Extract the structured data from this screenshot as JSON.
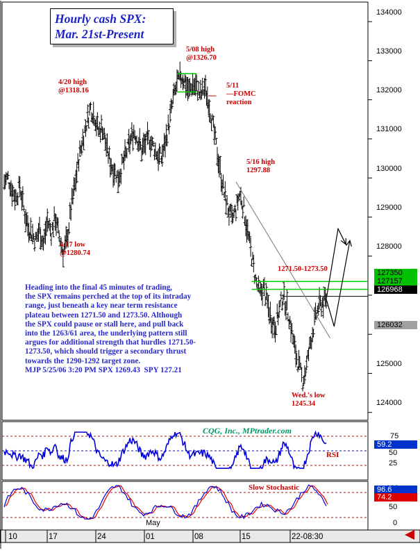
{
  "title": {
    "line1": "Hourly cash SPX:",
    "line2": "Mar. 21st-Present"
  },
  "annotations": [
    {
      "key": "apr20",
      "text": "4/20 high\n@1318.16"
    },
    {
      "key": "may08",
      "text": "5/08 high\n@1326.70"
    },
    {
      "key": "may11",
      "text": "5/11\n—FOMC\nreaction"
    },
    {
      "key": "may16",
      "text": "5/16 high\n1297.88"
    },
    {
      "key": "apr17",
      "text": "4/17 low\n@1280.74"
    },
    {
      "key": "zone",
      "text": "1271.50-1273.50"
    },
    {
      "key": "wedlow",
      "text": "Wed.'s low\n1245.34"
    }
  ],
  "commentary": "Heading into the final 45 minutes of trading,\nthe SPX remains perched at the top of its intraday\nrange, just beneath a key near term resistance\nplateau between 1271.50 and 1273.50. Although\nthe SPX could pause or stall here, and pull back\ninto the 1263/61 area, the underlying pattern still\nargues for additional strength that hurdles 1271.50-\n1273.50, which should trigger a secondary thrust\ntowards the 1290-1292 target zone.\nMJP 5/25/06 3:20 PM SPX 1269.43  SPY 127.21",
  "credit": "CQG, Inc., MPtrader.com",
  "price_axis_labels": [
    "134000",
    "133000",
    "132000",
    "131000",
    "130000",
    "129000",
    "128000",
    "125000",
    "124000"
  ],
  "price_tags": [
    {
      "text": "127350",
      "bg": "#00c000",
      "fg": "#000000"
    },
    {
      "text": "127157",
      "bg": "#00c000",
      "fg": "#000000"
    },
    {
      "text": "126968",
      "bg": "#000000",
      "fg": "#ffffff"
    },
    {
      "text": "126032",
      "bg": "#a0a0a0",
      "fg": "#000000"
    }
  ],
  "rsi": {
    "label": "RSI",
    "levels": [
      "75",
      "50",
      "25"
    ],
    "value": "59.2",
    "value_bg": "#0033cc",
    "value_fg": "#ffffff"
  },
  "stochastic": {
    "label": "Slow Stochastic",
    "levels": [
      "100",
      "50",
      "0"
    ],
    "values": [
      "96.6",
      "74.2"
    ],
    "value_bgs": [
      "#0033cc",
      "#dd0000"
    ]
  },
  "x_axis": {
    "month": "May",
    "labels": [
      "10",
      "17",
      "24",
      "01",
      "08",
      "15",
      "22-08:30"
    ]
  },
  "colors": {
    "price_bars": "#000000",
    "resistance": "#00cc00",
    "rsi_line": "#0000dd",
    "stoch_k": "#0000dd",
    "stoch_d": "#dd0000",
    "arrows": "#000000"
  },
  "chart_data": {
    "type": "ohlc",
    "instrument": "SPX hourly cash",
    "y_axis": {
      "label": "",
      "ylim": [
        1238,
        1345
      ],
      "ticks": [
        1340,
        1330,
        1320,
        1310,
        1300,
        1290,
        1280,
        1270,
        1260,
        1250,
        1240
      ]
    },
    "x_categories": [
      "04-10",
      "04-17",
      "04-24",
      "05-01",
      "05-08",
      "05-15",
      "05-22"
    ],
    "key_points": [
      {
        "label": "4/17 low",
        "value": 1280.74
      },
      {
        "label": "4/20 high",
        "value": 1318.16
      },
      {
        "label": "5/08 high",
        "value": 1326.7
      },
      {
        "label": "5/16 high",
        "value": 1297.88
      },
      {
        "label": "Wed.'s low",
        "value": 1245.34
      }
    ],
    "resistance_zone": [
      1271.5,
      1273.5
    ],
    "current": 1269.68,
    "path": [
      [
        0,
        1299
      ],
      [
        2,
        1300
      ],
      [
        4,
        1297
      ],
      [
        6,
        1295
      ],
      [
        8,
        1298
      ],
      [
        10,
        1292
      ],
      [
        12,
        1288
      ],
      [
        14,
        1286
      ],
      [
        16,
        1284
      ],
      [
        18,
        1287
      ],
      [
        20,
        1283
      ],
      [
        22,
        1289
      ],
      [
        24,
        1286
      ],
      [
        26,
        1290
      ],
      [
        28,
        1285
      ],
      [
        30,
        1281
      ],
      [
        32,
        1284
      ],
      [
        34,
        1292
      ],
      [
        36,
        1298
      ],
      [
        38,
        1305
      ],
      [
        40,
        1310
      ],
      [
        42,
        1314
      ],
      [
        44,
        1318
      ],
      [
        46,
        1316
      ],
      [
        48,
        1312
      ],
      [
        50,
        1313
      ],
      [
        52,
        1308
      ],
      [
        54,
        1304
      ],
      [
        56,
        1302
      ],
      [
        58,
        1300
      ],
      [
        60,
        1303
      ],
      [
        62,
        1306
      ],
      [
        64,
        1309
      ],
      [
        66,
        1312
      ],
      [
        68,
        1310
      ],
      [
        70,
        1307
      ],
      [
        72,
        1309
      ],
      [
        74,
        1310
      ],
      [
        76,
        1308
      ],
      [
        78,
        1306
      ],
      [
        80,
        1305
      ],
      [
        82,
        1309
      ],
      [
        84,
        1314
      ],
      [
        86,
        1320
      ],
      [
        88,
        1324
      ],
      [
        90,
        1326
      ],
      [
        92,
        1325
      ],
      [
        94,
        1322
      ],
      [
        96,
        1324
      ],
      [
        98,
        1323
      ],
      [
        100,
        1321
      ],
      [
        102,
        1323
      ],
      [
        104,
        1320
      ],
      [
        106,
        1314
      ],
      [
        108,
        1308
      ],
      [
        110,
        1302
      ],
      [
        112,
        1296
      ],
      [
        114,
        1292
      ],
      [
        116,
        1289
      ],
      [
        118,
        1292
      ],
      [
        120,
        1296
      ],
      [
        122,
        1292
      ],
      [
        124,
        1286
      ],
      [
        126,
        1280
      ],
      [
        128,
        1274
      ],
      [
        130,
        1270
      ],
      [
        132,
        1272
      ],
      [
        134,
        1268
      ],
      [
        136,
        1264
      ],
      [
        138,
        1262
      ],
      [
        140,
        1266
      ],
      [
        142,
        1270
      ],
      [
        144,
        1267
      ],
      [
        146,
        1262
      ],
      [
        148,
        1256
      ],
      [
        150,
        1252
      ],
      [
        152,
        1248
      ],
      [
        154,
        1252
      ],
      [
        156,
        1258
      ],
      [
        158,
        1263
      ],
      [
        160,
        1267
      ],
      [
        162,
        1268
      ],
      [
        164,
        1269
      ]
    ]
  }
}
